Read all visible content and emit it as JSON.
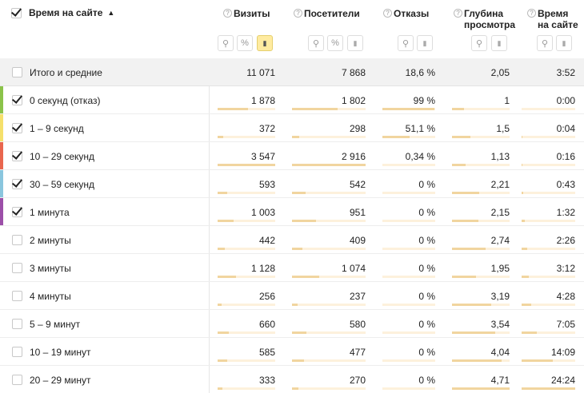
{
  "header": {
    "dimension_title": "Время на сайте",
    "sort_arrow": "▲",
    "help_glyph": "?",
    "columns": [
      {
        "label": "Визиты",
        "label2": ""
      },
      {
        "label": "Посетители",
        "label2": ""
      },
      {
        "label": "Отказы",
        "label2": ""
      },
      {
        "label": "Глубина",
        "label2": "просмотра"
      },
      {
        "label": "Время",
        "label2": "на сайте"
      }
    ],
    "tools": {
      "filter_glyph": "⚲",
      "percent_glyph": "%",
      "chart_glyph": "▮"
    }
  },
  "total": {
    "name": "Итого и средние",
    "visits": "11 071",
    "visitors": "7 868",
    "bounces": "18,6 %",
    "depth": "2,05",
    "time": "3:52"
  },
  "rows": [
    {
      "name": "0 секунд (отказ)",
      "checked": true,
      "color": "#8bc34a",
      "visits": "1 878",
      "visitors": "1 802",
      "bounces": "99 %",
      "depth": "1",
      "time": "0:00",
      "visits_frac": 0.53,
      "visitors_frac": 0.62,
      "bounces_frac": 0.99,
      "depth_frac": 0.21,
      "time_frac": 0.0
    },
    {
      "name": "1 – 9 секунд",
      "checked": true,
      "color": "#f5e06b",
      "visits": "372",
      "visitors": "298",
      "bounces": "51,1 %",
      "depth": "1,5",
      "time": "0:04",
      "visits_frac": 0.1,
      "visitors_frac": 0.1,
      "bounces_frac": 0.52,
      "depth_frac": 0.32,
      "time_frac": 0.01
    },
    {
      "name": "10 – 29 секунд",
      "checked": true,
      "color": "#e9664e",
      "visits": "3 547",
      "visitors": "2 916",
      "bounces": "0,34 %",
      "depth": "1,13",
      "time": "0:16",
      "visits_frac": 1.0,
      "visitors_frac": 1.0,
      "bounces_frac": 0.0,
      "depth_frac": 0.24,
      "time_frac": 0.01
    },
    {
      "name": "30 – 59 секунд",
      "checked": true,
      "color": "#8ac6de",
      "visits": "593",
      "visitors": "542",
      "bounces": "0 %",
      "depth": "2,21",
      "time": "0:43",
      "visits_frac": 0.17,
      "visitors_frac": 0.19,
      "bounces_frac": 0.0,
      "depth_frac": 0.47,
      "time_frac": 0.03
    },
    {
      "name": "1 минута",
      "checked": true,
      "color": "#9c4fa8",
      "visits": "1 003",
      "visitors": "951",
      "bounces": "0 %",
      "depth": "2,15",
      "time": "1:32",
      "visits_frac": 0.28,
      "visitors_frac": 0.33,
      "bounces_frac": 0.0,
      "depth_frac": 0.46,
      "time_frac": 0.06
    },
    {
      "name": "2 минуты",
      "checked": false,
      "color": "",
      "visits": "442",
      "visitors": "409",
      "bounces": "0 %",
      "depth": "2,74",
      "time": "2:26",
      "visits_frac": 0.12,
      "visitors_frac": 0.14,
      "bounces_frac": 0.0,
      "depth_frac": 0.58,
      "time_frac": 0.1
    },
    {
      "name": "3 минуты",
      "checked": false,
      "color": "",
      "visits": "1 128",
      "visitors": "1 074",
      "bounces": "0 %",
      "depth": "1,95",
      "time": "3:12",
      "visits_frac": 0.32,
      "visitors_frac": 0.37,
      "bounces_frac": 0.0,
      "depth_frac": 0.41,
      "time_frac": 0.13
    },
    {
      "name": "4 минуты",
      "checked": false,
      "color": "",
      "visits": "256",
      "visitors": "237",
      "bounces": "0 %",
      "depth": "3,19",
      "time": "4:28",
      "visits_frac": 0.07,
      "visitors_frac": 0.08,
      "bounces_frac": 0.0,
      "depth_frac": 0.68,
      "time_frac": 0.18
    },
    {
      "name": "5 – 9 минут",
      "checked": false,
      "color": "",
      "visits": "660",
      "visitors": "580",
      "bounces": "0 %",
      "depth": "3,54",
      "time": "7:05",
      "visits_frac": 0.19,
      "visitors_frac": 0.2,
      "bounces_frac": 0.0,
      "depth_frac": 0.75,
      "time_frac": 0.29
    },
    {
      "name": "10 – 19 минут",
      "checked": false,
      "color": "",
      "visits": "585",
      "visitors": "477",
      "bounces": "0 %",
      "depth": "4,04",
      "time": "14:09",
      "visits_frac": 0.16,
      "visitors_frac": 0.16,
      "bounces_frac": 0.0,
      "depth_frac": 0.86,
      "time_frac": 0.58
    },
    {
      "name": "20 – 29 минут",
      "checked": false,
      "color": "",
      "visits": "333",
      "visitors": "270",
      "bounces": "0 %",
      "depth": "4,71",
      "time": "24:24",
      "visits_frac": 0.09,
      "visitors_frac": 0.09,
      "bounces_frac": 0.0,
      "depth_frac": 1.0,
      "time_frac": 1.0
    }
  ]
}
